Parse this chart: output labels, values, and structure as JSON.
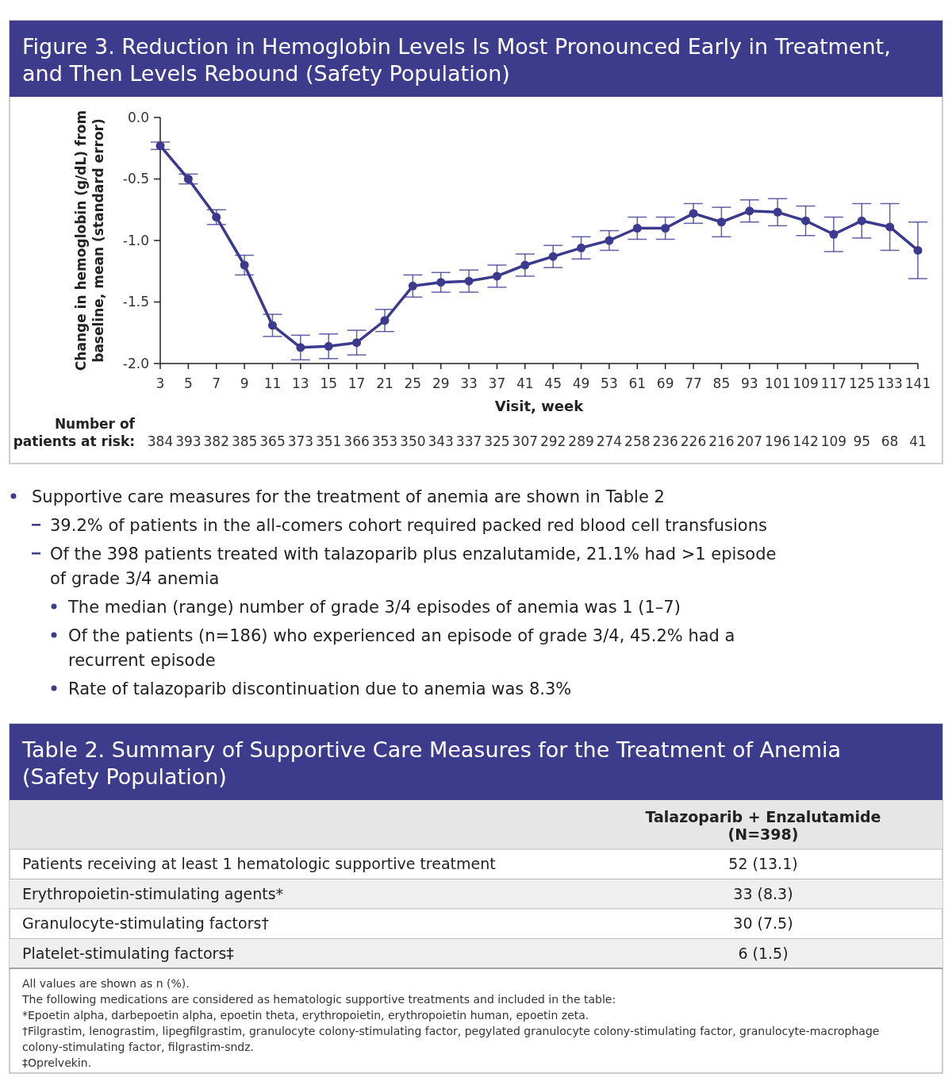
{
  "chart_data": [
    {
      "type": "line",
      "title": "Figure 3. Reduction in Hemoglobin Levels Is Most Pronounced Early in Treatment, and Then Levels Rebound (Safety Population)",
      "xlabel": "Visit, week",
      "ylabel": "Change in hemoglobin (g/dL) from baseline, mean (standard error)",
      "categories": [
        "3",
        "5",
        "7",
        "9",
        "11",
        "13",
        "15",
        "17",
        "21",
        "25",
        "29",
        "33",
        "37",
        "41",
        "45",
        "49",
        "53",
        "61",
        "69",
        "77",
        "85",
        "93",
        "101",
        "109",
        "117",
        "125",
        "133",
        "141"
      ],
      "series": [
        {
          "color": "#3b3a8e",
          "values": [
            -0.23,
            -0.5,
            -0.81,
            -1.2,
            -1.69,
            -1.87,
            -1.86,
            -1.83,
            -1.65,
            -1.37,
            -1.34,
            -1.33,
            -1.29,
            -1.2,
            -1.13,
            -1.06,
            -1.0,
            -0.9,
            -0.9,
            -0.78,
            -0.85,
            -0.76,
            -0.77,
            -0.84,
            -0.95,
            -0.84,
            -0.89,
            -1.08
          ],
          "errors": [
            0.03,
            0.04,
            0.06,
            0.08,
            0.09,
            0.1,
            0.1,
            0.1,
            0.09,
            0.09,
            0.08,
            0.09,
            0.09,
            0.09,
            0.09,
            0.09,
            0.08,
            0.09,
            0.09,
            0.08,
            0.12,
            0.09,
            0.11,
            0.12,
            0.14,
            0.14,
            0.19,
            0.23
          ]
        }
      ],
      "ylim": [
        -2.0,
        0.0
      ],
      "yticks": [
        {
          "value": -2,
          "label": "-2.0"
        },
        {
          "value": -1.5,
          "label": "-1.5"
        },
        {
          "value": -1,
          "label": "-1.0"
        },
        {
          "value": -0.5,
          "label": "-0.5"
        },
        {
          "value": 0,
          "label": "0.0"
        }
      ],
      "marker": "circle",
      "line_style": "solid",
      "annotations": [
        "Number of patients at risk:",
        "384",
        "393",
        "382",
        "385",
        "365",
        "373",
        "351",
        "366",
        "353",
        "350",
        "343",
        "337",
        "325",
        "307",
        "292",
        "289",
        "274",
        "258",
        "236",
        "226",
        "216",
        "207",
        "196",
        "142",
        "109",
        "95",
        "68",
        "41"
      ]
    },
    {
      "type": "other",
      "annotations": [
        "Supportive care measures for the treatment of anemia are shown in Table 2",
        "39.2% of patients in the all-comers cohort required packed red blood cell transfusions",
        "Of the 398 patients treated with talazoparib plus enzalutamide, 21.1% had >1 episode of grade 3/4 anemia",
        "The median (range) number of grade 3/4 episodes of anemia was 1 (1–7)",
        "Of the patients (n=186) who experienced an episode of grade 3/4, 45.2% had a recurrent episode",
        "Rate of talazoparib discontinuation due to anemia was 8.3%"
      ]
    },
    {
      "type": "other",
      "title": "Table 2. Summary of Supportive Care Measures for the Treatment of Anemia (Safety Population)",
      "subtitle": "Talazoparib + Enzalutamide (N=398)",
      "categories": [
        "Patients receiving at least 1 hematologic supportive treatment",
        "Erythropoietin-stimulating agents*",
        "Granulocyte-stimulating factors†",
        "Platelet-stimulating factors‡"
      ],
      "value_labels": [
        "52 (13.1)",
        "33 (8.3)",
        "30 (7.5)",
        "6 (1.5)"
      ],
      "annotations": [
        "All values are shown as n (%).",
        "The following medications are considered as hematologic supportive treatments and included in the table:",
        "*Epoetin alpha, darbepoetin alpha, epoetin theta, erythropoietin, erythropoietin human, epoetin zeta.",
        "†Filgrastim, lenograstim, lipegfilgrastim, granulocyte colony-stimulating factor, pegylated granulocyte colony-stimulating factor, granulocyte-macrophage colony-stimulating factor, filgrastim-sndz.",
        "‡Oprelvekin."
      ]
    }
  ]
}
